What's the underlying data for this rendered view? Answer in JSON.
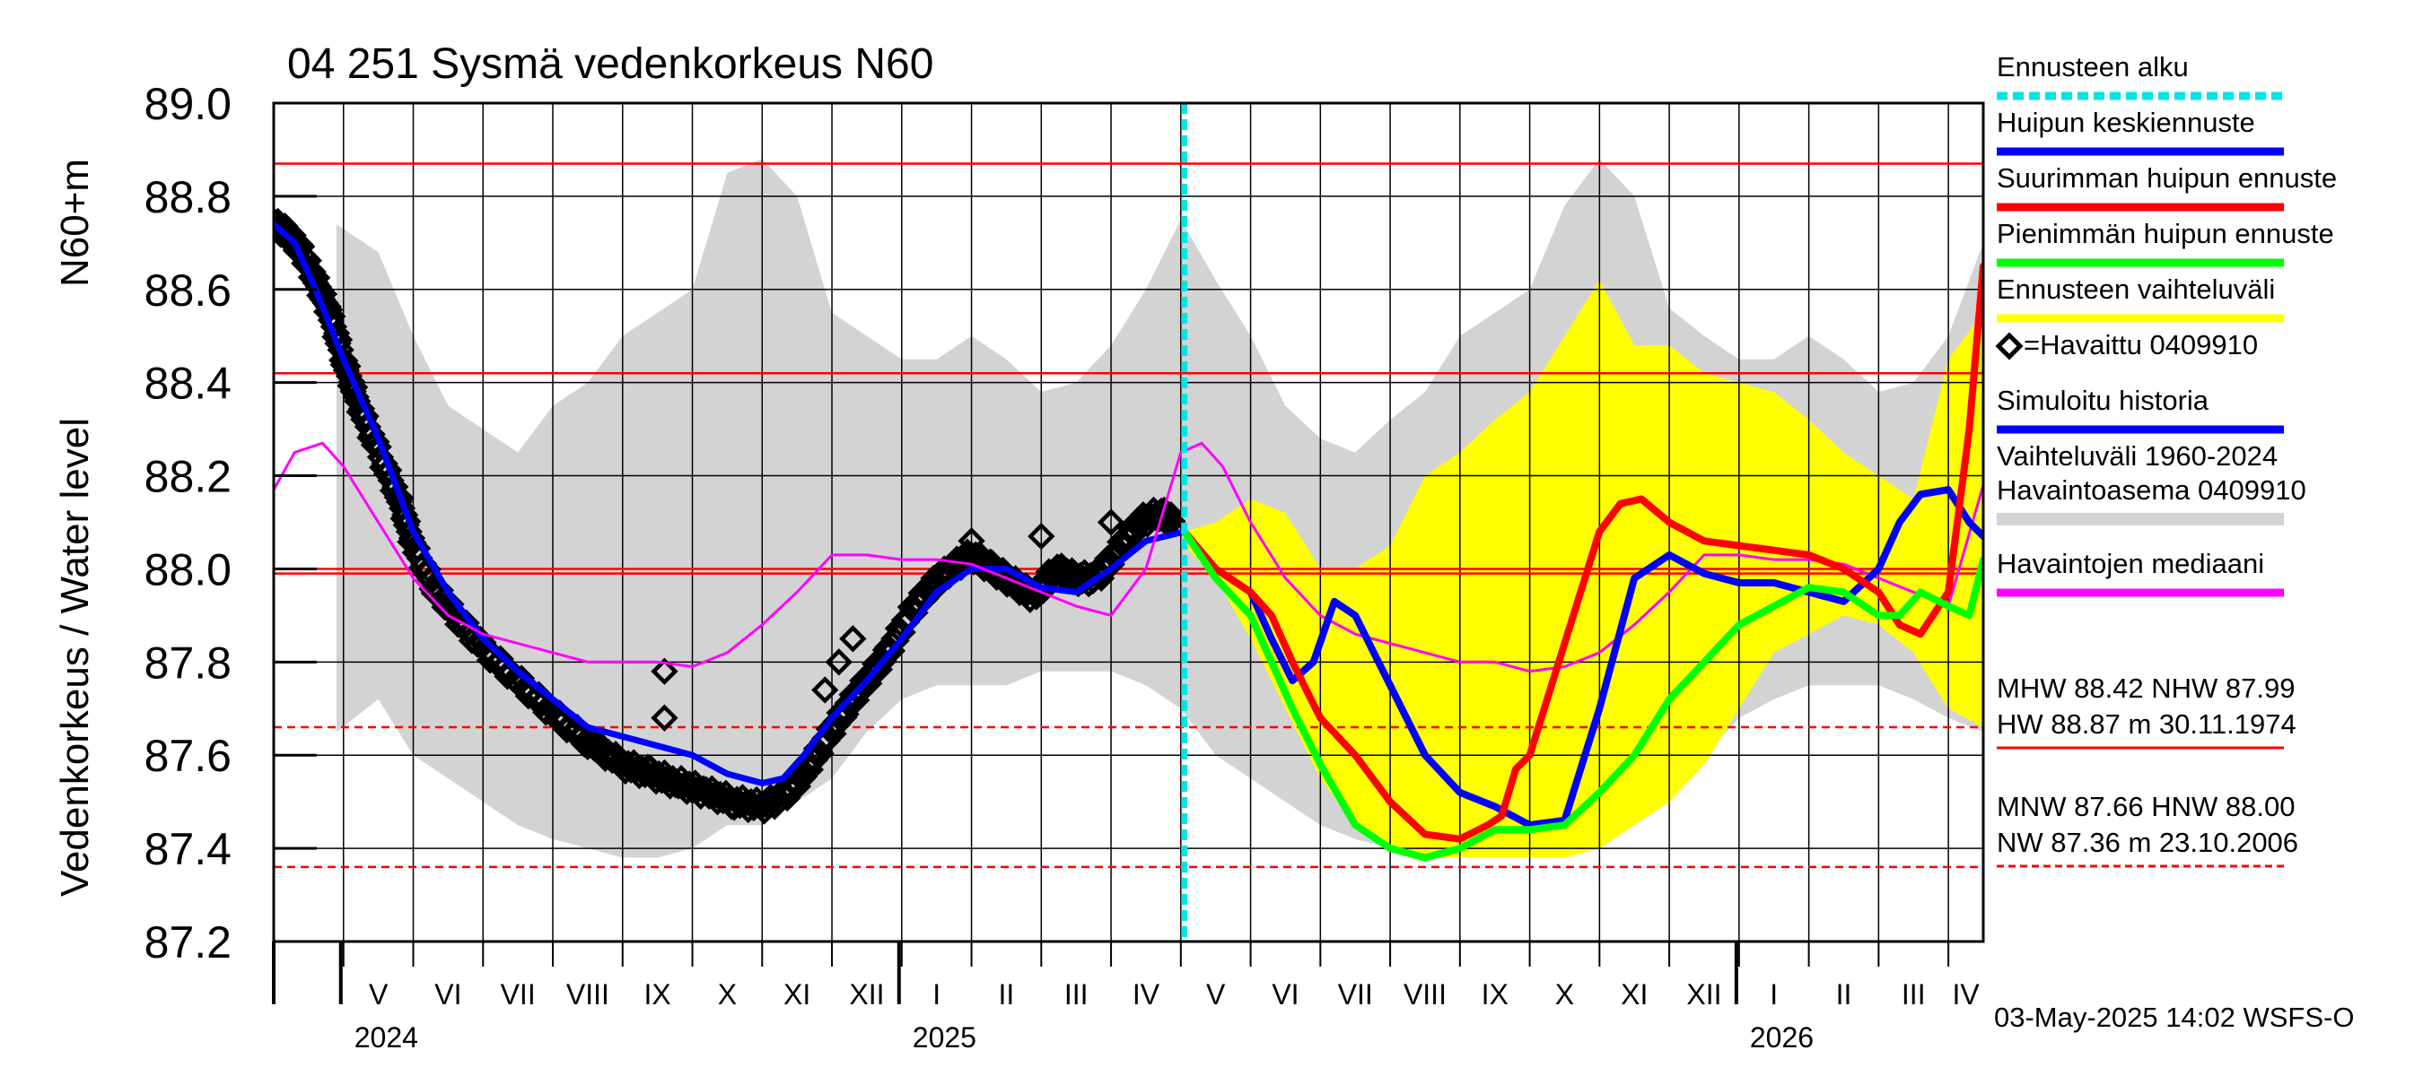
{
  "chart_data": {
    "type": "line",
    "title": "04 251 Sysmä vedenkorkeus N60",
    "ylabel": "Vedenkorkeus / Water level",
    "ylabel2": "N60+m",
    "ylim": [
      87.2,
      89.0
    ],
    "yticks": [
      "87.2",
      "87.4",
      "87.6",
      "87.8",
      "88.0",
      "88.2",
      "88.4",
      "88.6",
      "88.8",
      "89.0"
    ],
    "x_unit": "months since 2024-04-01",
    "xlim": [
      0,
      24.5
    ],
    "months": [
      {
        "label": "V",
        "start": 1
      },
      {
        "label": "VI",
        "start": 2
      },
      {
        "label": "VII",
        "start": 3
      },
      {
        "label": "VIII",
        "start": 4
      },
      {
        "label": "IX",
        "start": 5
      },
      {
        "label": "X",
        "start": 6
      },
      {
        "label": "XI",
        "start": 7
      },
      {
        "label": "XII",
        "start": 8
      },
      {
        "label": "I",
        "start": 9
      },
      {
        "label": "II",
        "start": 10
      },
      {
        "label": "III",
        "start": 11
      },
      {
        "label": "IV",
        "start": 12
      },
      {
        "label": "V",
        "start": 13
      },
      {
        "label": "VI",
        "start": 14
      },
      {
        "label": "VII",
        "start": 15
      },
      {
        "label": "VIII",
        "start": 16
      },
      {
        "label": "IX",
        "start": 17
      },
      {
        "label": "X",
        "start": 18
      },
      {
        "label": "XI",
        "start": 19
      },
      {
        "label": "XII",
        "start": 20
      },
      {
        "label": "I",
        "start": 21
      },
      {
        "label": "II",
        "start": 22
      },
      {
        "label": "III",
        "start": 23
      },
      {
        "label": "IV",
        "start": 24
      }
    ],
    "years": [
      {
        "label": "2024",
        "at": 1
      },
      {
        "label": "2025",
        "at": 9
      },
      {
        "label": "2026",
        "at": 21
      }
    ],
    "forecast_start": 13.05,
    "reference_lines": [
      {
        "name": "HW",
        "value": 88.87,
        "style": "solid"
      },
      {
        "name": "MHW",
        "value": 88.42,
        "style": "solid"
      },
      {
        "name": "HNW",
        "value": 88.0,
        "style": "solid"
      },
      {
        "name": "NHW",
        "value": 87.99,
        "style": "solid"
      },
      {
        "name": "MNW",
        "value": 87.66,
        "style": "dashed"
      },
      {
        "name": "NW",
        "value": 87.36,
        "style": "dashed"
      }
    ],
    "historical_range": {
      "x": [
        0.9,
        1.5,
        2.0,
        2.5,
        3.0,
        3.5,
        4.0,
        4.5,
        5.0,
        5.5,
        6.0,
        6.5,
        7.0,
        7.5,
        8.0,
        8.5,
        9.0,
        9.5,
        10.0,
        10.5,
        11.0,
        11.5,
        12.0,
        12.5,
        13.0,
        13.5,
        14.0,
        14.5,
        15.0,
        15.5,
        16.0,
        16.5,
        17.0,
        17.5,
        18.0,
        18.5,
        19.0,
        19.5,
        20.0,
        20.5,
        21.0,
        21.5,
        22.0,
        22.5,
        23.0,
        23.5,
        24.0,
        24.5
      ],
      "upper": [
        88.74,
        88.68,
        88.5,
        88.35,
        88.3,
        88.25,
        88.35,
        88.4,
        88.5,
        88.55,
        88.6,
        88.85,
        88.88,
        88.8,
        88.55,
        88.5,
        88.45,
        88.45,
        88.5,
        88.45,
        88.38,
        88.4,
        88.48,
        88.6,
        88.75,
        88.62,
        88.5,
        88.35,
        88.28,
        88.25,
        88.32,
        88.38,
        88.5,
        88.55,
        88.6,
        88.78,
        88.88,
        88.8,
        88.56,
        88.5,
        88.45,
        88.45,
        88.5,
        88.45,
        88.38,
        88.4,
        88.5,
        88.7
      ],
      "lower": [
        87.65,
        87.72,
        87.6,
        87.55,
        87.5,
        87.45,
        87.42,
        87.4,
        87.38,
        87.38,
        87.4,
        87.45,
        87.45,
        87.5,
        87.55,
        87.65,
        87.72,
        87.75,
        87.75,
        87.75,
        87.78,
        87.78,
        87.78,
        87.75,
        87.7,
        87.6,
        87.55,
        87.5,
        87.45,
        87.42,
        87.4,
        87.38,
        87.38,
        87.38,
        87.4,
        87.45,
        87.45,
        87.5,
        87.55,
        87.6,
        87.68,
        87.72,
        87.75,
        87.75,
        87.75,
        87.72,
        87.68,
        87.65
      ]
    },
    "forecast_range": {
      "x": [
        13.05,
        13.5,
        14.0,
        14.5,
        15.0,
        15.5,
        16.0,
        16.5,
        17.0,
        17.5,
        18.0,
        18.5,
        19.0,
        19.5,
        20.0,
        20.5,
        21.0,
        21.5,
        22.0,
        22.5,
        23.0,
        23.5,
        24.0,
        24.5
      ],
      "upper": [
        88.08,
        88.1,
        88.15,
        88.12,
        88.0,
        88.0,
        88.05,
        88.2,
        88.25,
        88.32,
        88.38,
        88.5,
        88.62,
        88.48,
        88.48,
        88.42,
        88.4,
        88.38,
        88.32,
        88.25,
        88.2,
        88.15,
        88.45,
        88.55
      ],
      "lower": [
        88.05,
        87.98,
        87.85,
        87.7,
        87.55,
        87.45,
        87.4,
        87.38,
        87.38,
        87.38,
        87.38,
        87.38,
        87.4,
        87.45,
        87.5,
        87.58,
        87.7,
        87.82,
        87.86,
        87.9,
        87.88,
        87.82,
        87.7,
        87.66
      ]
    },
    "series": [
      {
        "name": "Havaittu 0409910",
        "style": "diamond",
        "color": "#000000",
        "x": [
          0.0,
          0.2,
          0.4,
          0.6,
          0.8,
          1.0,
          1.2,
          1.5,
          1.8,
          2.0,
          2.3,
          2.6,
          3.0,
          3.5,
          4.0,
          4.5,
          5.0,
          5.4,
          5.8,
          6.2,
          6.6,
          7.0,
          7.3,
          7.6,
          7.9,
          8.2,
          8.5,
          8.8,
          9.1,
          9.4,
          9.7,
          10.0,
          10.3,
          10.6,
          10.9,
          11.2,
          11.5,
          11.8,
          12.1,
          12.4,
          12.7,
          12.9
        ],
        "y": [
          88.74,
          88.72,
          88.68,
          88.62,
          88.55,
          88.45,
          88.36,
          88.25,
          88.15,
          88.05,
          87.96,
          87.9,
          87.83,
          87.76,
          87.69,
          87.63,
          87.58,
          87.56,
          87.54,
          87.52,
          87.5,
          87.49,
          87.51,
          87.56,
          87.63,
          87.7,
          87.76,
          87.82,
          87.9,
          87.96,
          88.0,
          88.03,
          88.0,
          87.97,
          87.94,
          88.0,
          87.98,
          87.98,
          88.04,
          88.1,
          88.12,
          88.1
        ]
      },
      {
        "name": "Simuloitu historia",
        "style": "line",
        "color": "#0000ff",
        "x": [
          0.0,
          0.3,
          0.6,
          1.0,
          1.5,
          2.0,
          2.5,
          3.0,
          3.5,
          4.0,
          4.5,
          5.0,
          5.5,
          6.0,
          6.5,
          7.0,
          7.3,
          7.6,
          8.0,
          8.5,
          9.0,
          9.5,
          10.0,
          10.5,
          11.0,
          11.5,
          12.0,
          12.5,
          13.05
        ],
        "y": [
          88.74,
          88.7,
          88.6,
          88.45,
          88.28,
          88.08,
          87.95,
          87.85,
          87.78,
          87.72,
          87.66,
          87.64,
          87.62,
          87.6,
          87.56,
          87.54,
          87.55,
          87.6,
          87.68,
          87.76,
          87.85,
          87.95,
          88.0,
          88.0,
          87.96,
          87.95,
          88.0,
          88.06,
          88.08
        ]
      },
      {
        "name": "Havaintojen mediaani",
        "style": "line",
        "color": "#ff00ff",
        "x": [
          0.0,
          0.3,
          0.7,
          1.0,
          1.5,
          2.0,
          2.5,
          3.0,
          3.5,
          4.0,
          4.5,
          5.0,
          5.5,
          6.0,
          6.5,
          7.0,
          7.5,
          8.0,
          8.5,
          9.0,
          9.5,
          10.0,
          10.5,
          11.0,
          11.5,
          12.0,
          12.5,
          12.8,
          13.0,
          13.3,
          13.6,
          14.0,
          14.5,
          15.0,
          15.5,
          16.0,
          16.5,
          17.0,
          17.5,
          18.0,
          18.5,
          19.0,
          19.5,
          20.0,
          20.5,
          21.0,
          21.5,
          22.0,
          22.5,
          23.0,
          23.5,
          24.0,
          24.5
        ],
        "y": [
          88.17,
          88.25,
          88.27,
          88.22,
          88.1,
          87.98,
          87.9,
          87.86,
          87.84,
          87.82,
          87.8,
          87.8,
          87.8,
          87.79,
          87.82,
          87.88,
          87.95,
          88.03,
          88.03,
          88.02,
          88.02,
          88.01,
          87.98,
          87.95,
          87.92,
          87.9,
          88.0,
          88.15,
          88.25,
          88.27,
          88.22,
          88.1,
          87.98,
          87.9,
          87.86,
          87.84,
          87.82,
          87.8,
          87.8,
          87.78,
          87.79,
          87.82,
          87.88,
          87.95,
          88.03,
          88.03,
          88.02,
          88.02,
          88.01,
          87.98,
          87.95,
          87.92,
          88.18
        ]
      },
      {
        "name": "Huipun keskiennuste",
        "style": "line",
        "color": "#0000ff",
        "x": [
          13.05,
          13.5,
          14.0,
          14.3,
          14.6,
          14.9,
          15.2,
          15.5,
          16.0,
          16.5,
          17.0,
          17.5,
          18.0,
          18.5,
          19.0,
          19.5,
          20.0,
          20.5,
          21.0,
          21.5,
          22.0,
          22.5,
          23.0,
          23.3,
          23.6,
          24.0,
          24.3,
          24.5
        ],
        "y": [
          88.08,
          88.0,
          87.95,
          87.85,
          87.76,
          87.8,
          87.93,
          87.9,
          87.75,
          87.6,
          87.52,
          87.49,
          87.45,
          87.46,
          87.7,
          87.98,
          88.03,
          87.99,
          87.97,
          87.97,
          87.95,
          87.93,
          88.0,
          88.1,
          88.16,
          88.17,
          88.1,
          88.07
        ]
      },
      {
        "name": "Suurimman huipun ennuste",
        "style": "line",
        "color": "#ff0000",
        "x": [
          13.05,
          13.5,
          14.0,
          14.3,
          14.6,
          15.0,
          15.5,
          16.0,
          16.5,
          17.0,
          17.4,
          17.6,
          17.8,
          18.0,
          18.5,
          19.0,
          19.3,
          19.6,
          20.0,
          20.5,
          21.0,
          21.5,
          22.0,
          22.5,
          23.0,
          23.3,
          23.6,
          24.0,
          24.3,
          24.5
        ],
        "y": [
          88.08,
          88.0,
          87.95,
          87.9,
          87.8,
          87.68,
          87.6,
          87.5,
          87.43,
          87.42,
          87.45,
          87.47,
          87.57,
          87.6,
          87.84,
          88.08,
          88.14,
          88.15,
          88.1,
          88.06,
          88.05,
          88.04,
          88.03,
          88.0,
          87.95,
          87.88,
          87.86,
          87.95,
          88.3,
          88.65
        ]
      },
      {
        "name": "Pienimmän huipun ennuste",
        "style": "line",
        "color": "#00ff00",
        "x": [
          13.05,
          13.5,
          14.0,
          14.3,
          14.6,
          15.0,
          15.5,
          16.0,
          16.5,
          17.0,
          17.5,
          18.0,
          18.5,
          19.0,
          19.5,
          20.0,
          20.5,
          21.0,
          21.5,
          22.0,
          22.5,
          23.0,
          23.3,
          23.6,
          24.0,
          24.3,
          24.5
        ],
        "y": [
          88.08,
          87.98,
          87.9,
          87.8,
          87.7,
          87.58,
          87.45,
          87.4,
          87.38,
          87.4,
          87.44,
          87.44,
          87.45,
          87.52,
          87.6,
          87.72,
          87.8,
          87.88,
          87.92,
          87.96,
          87.95,
          87.9,
          87.9,
          87.95,
          87.92,
          87.9,
          88.02
        ]
      }
    ],
    "legend": [
      {
        "label": "Ennusteen alku",
        "color": "#00e5e5",
        "style": "dashed"
      },
      {
        "label": "Huipun keskiennuste",
        "color": "#0000ff",
        "style": "line"
      },
      {
        "label": "Suurimman huipun ennuste",
        "color": "#ff0000",
        "style": "line"
      },
      {
        "label": "Pienimmän huipun ennuste",
        "color": "#00ff00",
        "style": "line"
      },
      {
        "label": "Ennusteen vaihteluväli",
        "color": "#ffff00",
        "style": "line"
      },
      {
        "label": "=Havaittu 0409910",
        "color": "#000000",
        "style": "diamond"
      },
      {
        "label": "Simuloitu historia",
        "color": "#0000ff",
        "style": "line"
      },
      {
        "label": "Vaihteluväli 1960-2024",
        "label2": " Havaintoasema 0409910",
        "color": "#d3d3d3",
        "style": "band"
      },
      {
        "label": "Havaintojen mediaani",
        "color": "#ff00ff",
        "style": "line"
      }
    ],
    "stats": [
      {
        "line1": "MHW  88.42 NHW  87.99",
        "line2": "HW  88.87 m 30.11.1974",
        "color": "#ff0000",
        "style": "solid"
      },
      {
        "line1": "MNW  87.66 HNW  88.00",
        "line2": "NW  87.36 m 23.10.2006",
        "color": "#ff0000",
        "style": "dashed"
      }
    ],
    "footer": "03-May-2025 14:02 WSFS-O"
  }
}
